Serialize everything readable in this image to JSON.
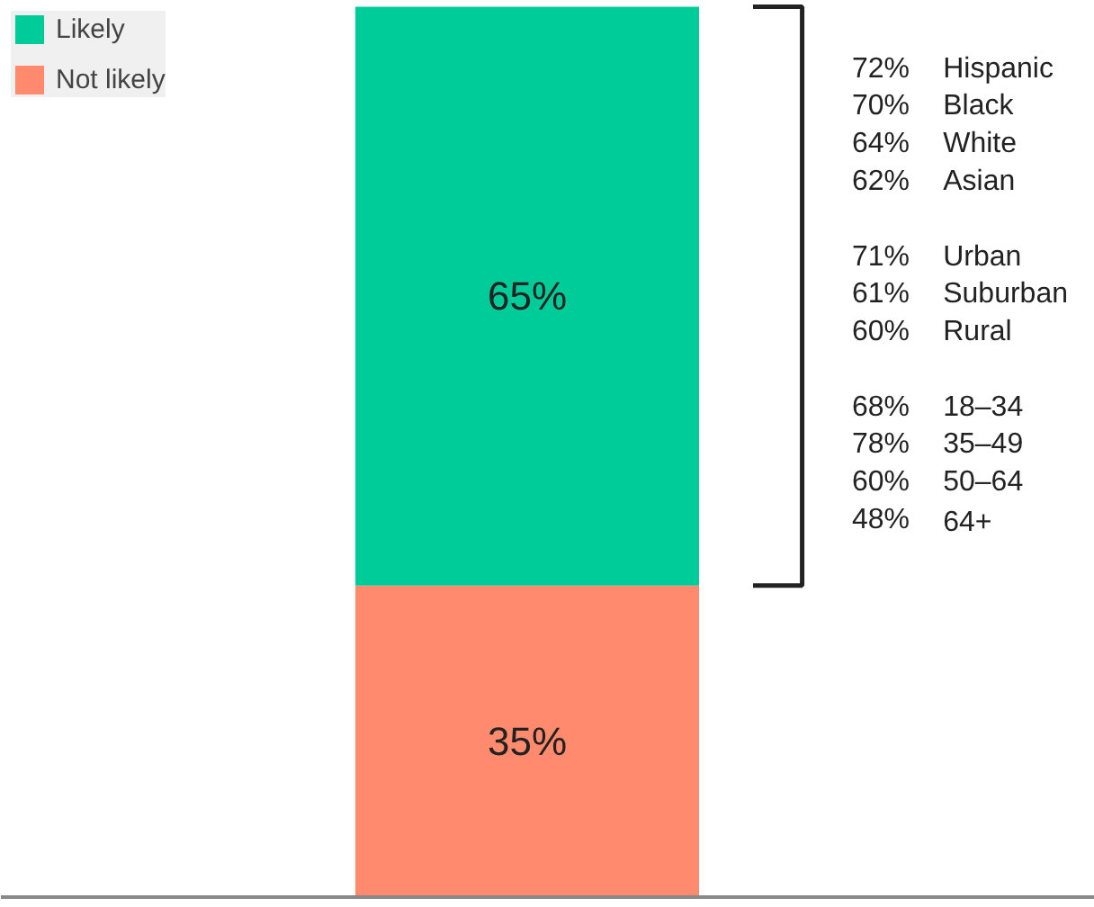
{
  "chart_data": {
    "type": "bar",
    "stacked": true,
    "categories": [
      null
    ],
    "series": [
      {
        "name": "Not likely",
        "color": "#ff8a6d",
        "values": [
          35
        ],
        "value_labels": [
          "35%"
        ]
      },
      {
        "name": "Likely",
        "color": "#00cc99",
        "values": [
          65
        ],
        "value_labels": [
          "65%"
        ]
      }
    ],
    "legend": "top left",
    "annotations": [
      "72% Hispanic\n70% Black\n64% White\n62% Asian",
      "71% Urban\n61% Suburban\n60% Rural",
      "68% 18–34\n78% 35–49\n60% 50–64\n48% 64+"
    ]
  }
}
